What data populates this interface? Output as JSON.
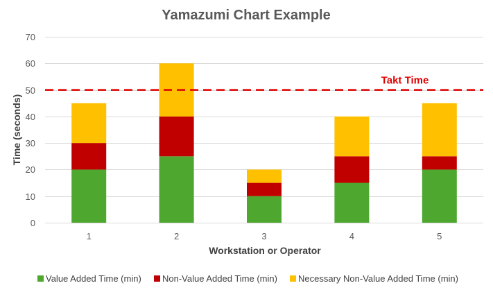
{
  "chart_data": {
    "type": "bar",
    "stacked": true,
    "title": "Yamazumi Chart Example",
    "xlabel": "Workstation or Operator",
    "ylabel": "Time (seconds)",
    "categories": [
      "1",
      "2",
      "3",
      "4",
      "5"
    ],
    "series": [
      {
        "name": "Value Added Time (min)",
        "color": "#4EA72E",
        "values": [
          20,
          25,
          10,
          15,
          20
        ]
      },
      {
        "name": "Non-Value Added Time (min)",
        "color": "#C00000",
        "values": [
          10,
          15,
          5,
          10,
          5
        ]
      },
      {
        "name": "Necessary Non-Value Added Time (min)",
        "color": "#FFC000",
        "values": [
          15,
          20,
          5,
          15,
          20
        ]
      }
    ],
    "ylim": [
      0,
      70
    ],
    "yticks": [
      0,
      10,
      20,
      30,
      40,
      50,
      60,
      70
    ],
    "grid": true,
    "legend": "bottom",
    "reference_line": {
      "label": "Takt Time",
      "value": 50,
      "color": "#E00000",
      "style": "dashed"
    }
  }
}
